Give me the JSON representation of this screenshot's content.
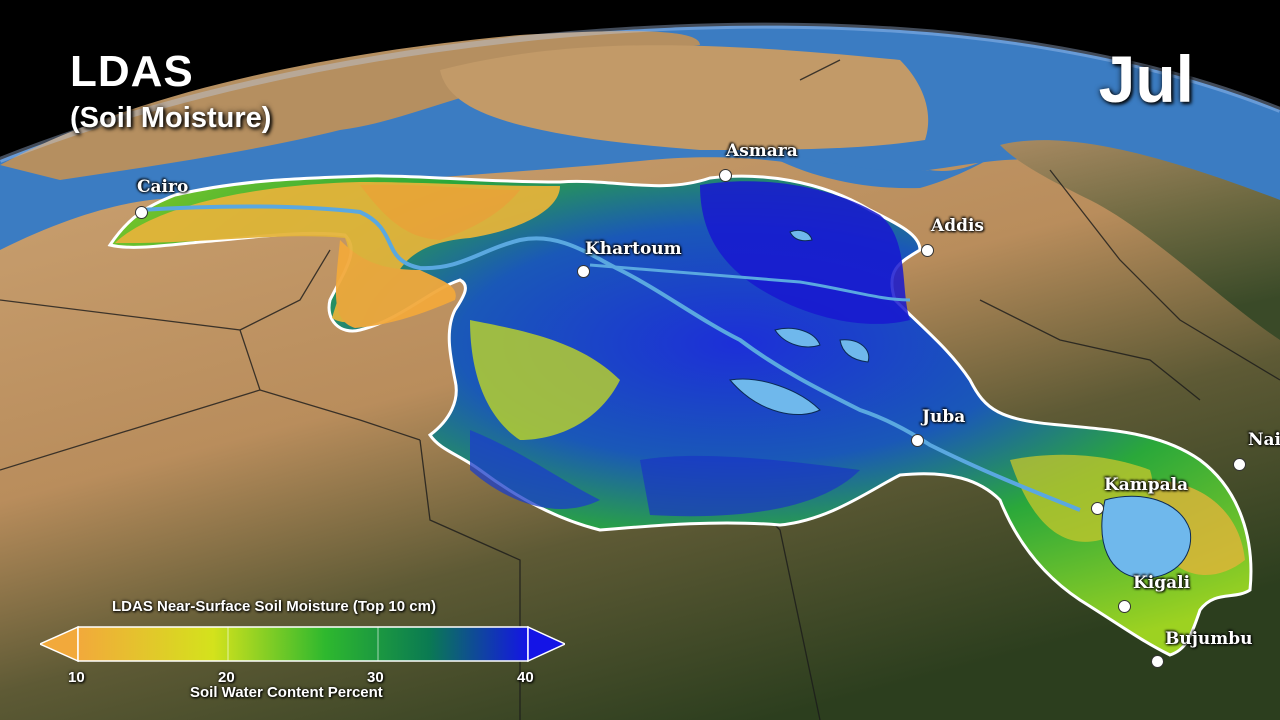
{
  "title": {
    "line1": "LDAS",
    "line2": "(Soil Moisture)"
  },
  "month": "Jul",
  "cities": [
    {
      "name": "Cairo",
      "key": "cairo"
    },
    {
      "name": "Asmara",
      "key": "asmara"
    },
    {
      "name": "Khartoum",
      "key": "khartoum"
    },
    {
      "name": "Addis",
      "key": "addis"
    },
    {
      "name": "Juba",
      "key": "juba"
    },
    {
      "name": "Nai",
      "key": "nairobi"
    },
    {
      "name": "Kampala",
      "key": "kampala"
    },
    {
      "name": "Kigali",
      "key": "kigali"
    },
    {
      "name": "Bujumbu",
      "key": "bujumbura"
    }
  ],
  "legend": {
    "title": "LDAS Near-Surface Soil Moisture (Top 10 cm)",
    "axis_label": "Soil Water Content Percent",
    "ticks": [
      "10",
      "20",
      "30",
      "40"
    ],
    "range": [
      10,
      40
    ],
    "colors": {
      "low": "#f2a93b",
      "mid1": "#d4e21c",
      "mid2": "#2eb82e",
      "mid3": "#0a7a52",
      "high": "#1414e6"
    }
  },
  "colors": {
    "ocean": "#3b7cc2",
    "desert": "#c49a63",
    "vegetation": "#2f4a22",
    "basin_border": "#ffffff",
    "space": "#000000"
  }
}
